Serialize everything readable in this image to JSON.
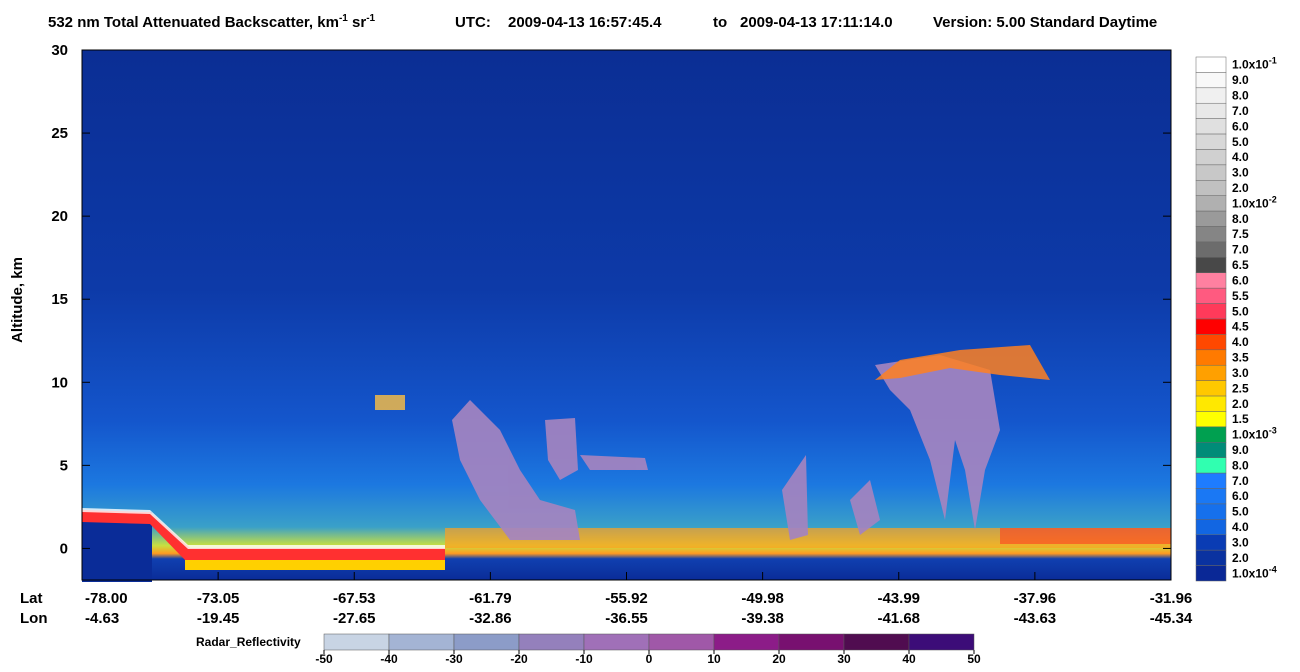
{
  "chart_data": {
    "type": "curtain",
    "title_parts": [
      "532 nm Total Attenuated Backscatter, km",
      "-1",
      " sr",
      "-1"
    ],
    "utc_label": "UTC:",
    "start": "2009-04-13 16:57:45.4",
    "to": "to",
    "end": "2009-04-13 17:11:14.0",
    "version": "Version: 5.00  Standard  Daytime",
    "ylabel": "Altitude, km",
    "ylim": [
      -1.9,
      30
    ],
    "yticks": [
      0,
      5,
      10,
      15,
      20,
      25,
      30
    ],
    "lat_label": "Lat",
    "lon_label": "Lon",
    "categories": [
      "-78.00",
      "-73.05",
      "-67.53",
      "-61.79",
      "-55.92",
      "-49.98",
      "-43.99",
      "-37.96",
      "-31.96"
    ],
    "lon_labels": [
      "-4.63",
      "-19.45",
      "-27.65",
      "-32.86",
      "-36.55",
      "-39.38",
      "-41.68",
      "-43.63",
      "-45.34"
    ],
    "colorbar": {
      "labels": [
        {
          "text": "1.0x10",
          "sup": "-1"
        },
        "9.0",
        "8.0",
        "7.0",
        "6.0",
        "5.0",
        "4.0",
        "3.0",
        "2.0",
        {
          "text": "1.0x10",
          "sup": "-2"
        },
        "8.0",
        "7.5",
        "7.0",
        "6.5",
        "6.0",
        "5.5",
        "5.0",
        "4.5",
        "4.0",
        "3.5",
        "3.0",
        "2.5",
        "2.0",
        "1.5",
        {
          "text": "1.0x10",
          "sup": "-3"
        },
        "9.0",
        "8.0",
        "7.0",
        "6.0",
        "5.0",
        "4.0",
        "3.0",
        "2.0",
        {
          "text": "1.0x10",
          "sup": "-4"
        }
      ],
      "colors": [
        "#ffffff",
        "#f8f8f8",
        "#f0f0f0",
        "#e8e8e8",
        "#e0e0e0",
        "#d8d8d8",
        "#d0d0d0",
        "#c8c8c8",
        "#c0c0c0",
        "#b0b0b0",
        "#9a9a9a",
        "#858585",
        "#6c6c6c",
        "#484848",
        "#ff80a0",
        "#ff5a80",
        "#ff3a5a",
        "#ff0000",
        "#ff4800",
        "#ff7a00",
        "#ffa000",
        "#ffc800",
        "#ffe800",
        "#ffff00",
        "#00a050",
        "#008c78",
        "#30ffb0",
        "#1e7cff",
        "#1a78f4",
        "#1670ec",
        "#1266e2",
        "#0a3cb4",
        "#0a32a0",
        "#0a2896"
      ]
    },
    "radar": {
      "label": "Radar_Reflectivity",
      "ticks": [
        -50,
        -40,
        -30,
        -20,
        -10,
        0,
        10,
        20,
        30,
        40,
        50
      ],
      "colors": [
        "#c8d4e4",
        "#a4b4d4",
        "#8c9cc8",
        "#9480bc",
        "#a070b8",
        "#a058a8",
        "#8c1c88",
        "#781070",
        "#500c50",
        "#3c0c78"
      ]
    }
  }
}
